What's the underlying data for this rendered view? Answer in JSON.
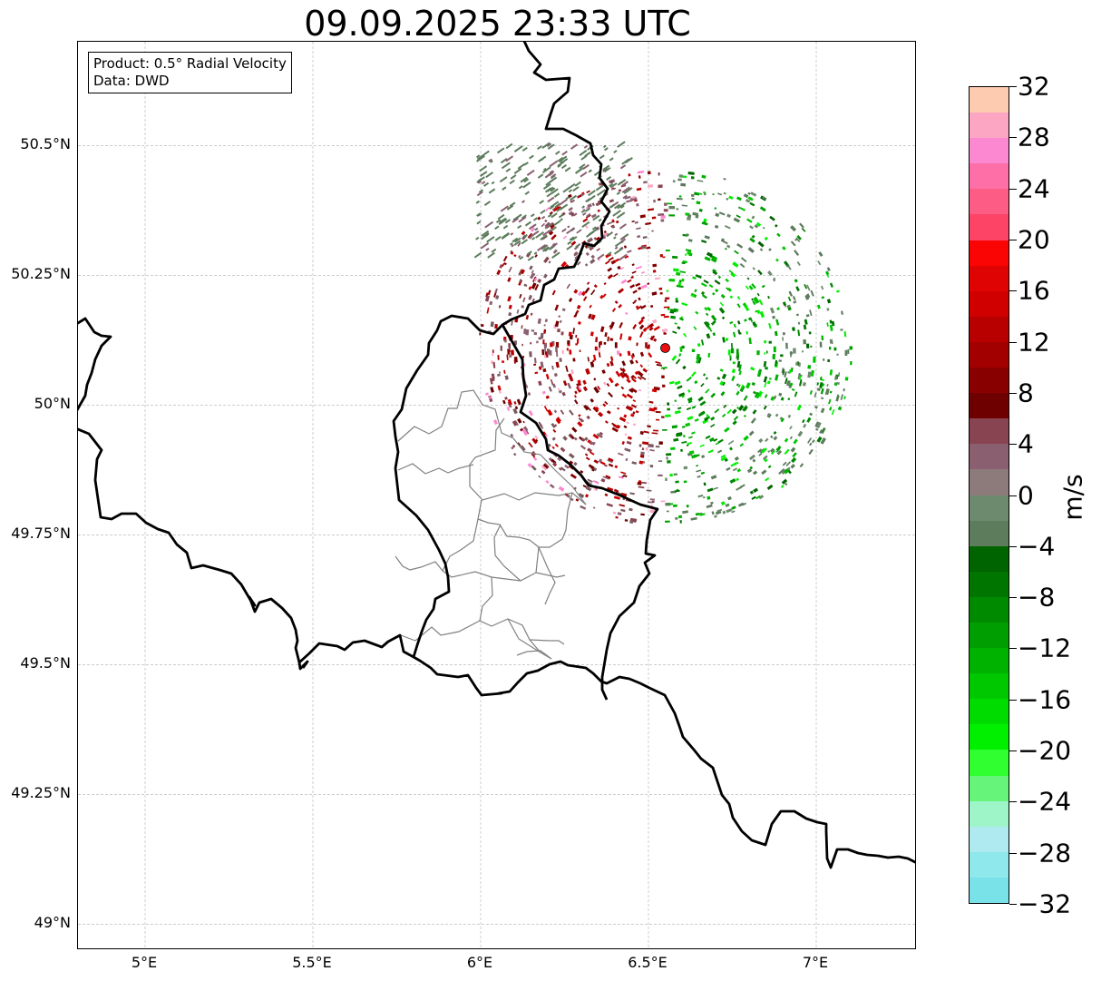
{
  "title": "09.09.2025 23:33 UTC",
  "info_box": {
    "product": "Product: 0.5° Radial Velocity",
    "source": "Data: DWD"
  },
  "map": {
    "extent": {
      "lon": [
        4.8,
        7.3
      ],
      "lat": [
        48.95,
        50.7
      ]
    },
    "radar_site": {
      "lon": 6.55,
      "lat": 50.11,
      "color": "#e81010"
    },
    "lat_ticks": [
      {
        "value": 50.5,
        "label": "50.5°N"
      },
      {
        "value": 50.25,
        "label": "50.25°N"
      },
      {
        "value": 50.0,
        "label": "50°N"
      },
      {
        "value": 49.75,
        "label": "49.75°N"
      },
      {
        "value": 49.5,
        "label": "49.5°N"
      },
      {
        "value": 49.25,
        "label": "49.25°N"
      },
      {
        "value": 49.0,
        "label": "49°N"
      }
    ],
    "lon_ticks": [
      {
        "value": 5.0,
        "label": "5°E"
      },
      {
        "value": 5.5,
        "label": "5.5°E"
      },
      {
        "value": 6.0,
        "label": "6°E"
      },
      {
        "value": 6.5,
        "label": "6.5°E"
      },
      {
        "value": 7.0,
        "label": "7°E"
      }
    ],
    "gridline_color": "#b0b0b0",
    "border_color": "#000000",
    "admin_border_color": "#808080"
  },
  "colorbar": {
    "label": "m/s",
    "min": -32,
    "max": 32,
    "ticks": [
      "32",
      "28",
      "24",
      "20",
      "16",
      "12",
      "8",
      "4",
      "0",
      "−4",
      "−8",
      "−12",
      "−16",
      "−20",
      "−24",
      "−28",
      "−32"
    ],
    "colors_top_to_bottom": [
      "#fdcbb0",
      "#fca6c4",
      "#fd88d2",
      "#fd6fa6",
      "#fd5c85",
      "#fd4466",
      "#fb0404",
      "#e00303",
      "#d00000",
      "#b80000",
      "#a20000",
      "#880000",
      "#6f0000",
      "#884450",
      "#8a6070",
      "#8d7a7a",
      "#6e8a6e",
      "#5c7c5c",
      "#006400",
      "#007500",
      "#008a00",
      "#009e00",
      "#00b200",
      "#00c800",
      "#00dc00",
      "#00f000",
      "#30ff30",
      "#66f57a",
      "#9ef5c8",
      "#aeeaf0",
      "#8ee8ec",
      "#78e2e8"
    ]
  }
}
